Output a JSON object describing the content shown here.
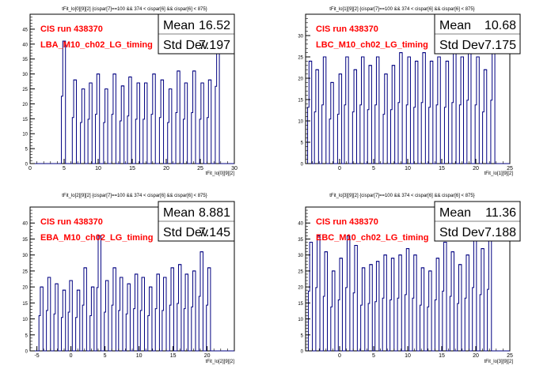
{
  "chart_data": [
    {
      "type": "bar",
      "title": "tFit_lo[0][9][2] {cispar[7]==100 && 374 < cispar[6] && cispar[6] < 875}",
      "xlabel": "tFit_lo[0][9][2]",
      "ylabel": "",
      "xlim": [
        0,
        30
      ],
      "ylim": [
        0,
        50
      ],
      "xticks": [
        "0",
        "5",
        "10",
        "15",
        "20",
        "25",
        "30"
      ],
      "yticks": [
        "0",
        "5",
        "10",
        "15",
        "20",
        "25",
        "30",
        "35",
        "40",
        "45"
      ],
      "annotations": [
        "CIS run 438370",
        "LBA_M10_ch02_LG_timing"
      ],
      "stats": {
        "mean_label": "Mean",
        "mean": "16.52",
        "std_label": "Std Dev",
        "std": "7.197"
      },
      "peaks": [
        {
          "x": 5.0,
          "y": 41
        },
        {
          "x": 6.6,
          "y": 28
        },
        {
          "x": 7.8,
          "y": 25
        },
        {
          "x": 8.9,
          "y": 27
        },
        {
          "x": 10.0,
          "y": 30
        },
        {
          "x": 11.2,
          "y": 25
        },
        {
          "x": 12.4,
          "y": 30
        },
        {
          "x": 13.6,
          "y": 26
        },
        {
          "x": 14.7,
          "y": 29
        },
        {
          "x": 15.9,
          "y": 27
        },
        {
          "x": 17.0,
          "y": 27
        },
        {
          "x": 18.2,
          "y": 30
        },
        {
          "x": 19.4,
          "y": 28
        },
        {
          "x": 20.6,
          "y": 25
        },
        {
          "x": 21.8,
          "y": 31
        },
        {
          "x": 22.9,
          "y": 27
        },
        {
          "x": 24.1,
          "y": 31
        },
        {
          "x": 25.3,
          "y": 27
        },
        {
          "x": 26.4,
          "y": 28
        },
        {
          "x": 27.6,
          "y": 47
        }
      ]
    },
    {
      "type": "bar",
      "title": "tFit_lo[1][9][2] {cispar[7]==100 && 374 < cispar[6] && cispar[6] < 875}",
      "xlabel": "tFit_lo[1][9][2]",
      "ylabel": "",
      "xlim": [
        -5,
        25
      ],
      "ylim": [
        0,
        35
      ],
      "xticks": [
        "0",
        "5",
        "10",
        "15",
        "20",
        "25"
      ],
      "yticks": [
        "0",
        "5",
        "10",
        "15",
        "20",
        "25",
        "30"
      ],
      "annotations": [
        "CIS run 438370",
        "LBC_M10_ch02_LG_timing"
      ],
      "stats": {
        "mean_label": "Mean",
        "mean": "10.68",
        "std_label": "Std Dev",
        "std": "7.175"
      },
      "peaks": [
        {
          "x": -4.3,
          "y": 24
        },
        {
          "x": -3.3,
          "y": 22
        },
        {
          "x": -2.2,
          "y": 25
        },
        {
          "x": -1.1,
          "y": 19
        },
        {
          "x": 0.1,
          "y": 21
        },
        {
          "x": 1.1,
          "y": 25
        },
        {
          "x": 2.3,
          "y": 22
        },
        {
          "x": 3.4,
          "y": 25
        },
        {
          "x": 4.5,
          "y": 23
        },
        {
          "x": 5.6,
          "y": 25
        },
        {
          "x": 6.8,
          "y": 21
        },
        {
          "x": 7.9,
          "y": 23
        },
        {
          "x": 9.0,
          "y": 26
        },
        {
          "x": 10.2,
          "y": 25
        },
        {
          "x": 11.3,
          "y": 24
        },
        {
          "x": 12.4,
          "y": 26
        },
        {
          "x": 13.5,
          "y": 24
        },
        {
          "x": 14.6,
          "y": 25
        },
        {
          "x": 15.8,
          "y": 24
        },
        {
          "x": 16.9,
          "y": 26
        },
        {
          "x": 18.0,
          "y": 25
        },
        {
          "x": 19.1,
          "y": 27
        },
        {
          "x": 20.3,
          "y": 25
        },
        {
          "x": 21.4,
          "y": 22
        },
        {
          "x": 22.6,
          "y": 27
        }
      ]
    },
    {
      "type": "bar",
      "title": "tFit_lo[2][9][2] {cispar[7]==100 && 374 < cispar[6] && cispar[6] < 875}",
      "xlabel": "tFit_lo[2][9][2]",
      "ylabel": "",
      "xlim": [
        -6,
        24
      ],
      "ylim": [
        0,
        45
      ],
      "xticks": [
        "-5",
        "0",
        "5",
        "10",
        "15",
        "20"
      ],
      "yticks": [
        "0",
        "5",
        "10",
        "15",
        "20",
        "25",
        "30",
        "35",
        "40"
      ],
      "annotations": [
        "CIS run 438370",
        "EBA_M10_ch02_LG_timing"
      ],
      "stats": {
        "mean_label": "Mean",
        "mean": "8.881",
        "std_label": "Std Dev",
        "std": "7.145"
      },
      "peaks": [
        {
          "x": -4.3,
          "y": 20
        },
        {
          "x": -3.2,
          "y": 23
        },
        {
          "x": -2.1,
          "y": 21
        },
        {
          "x": -1.0,
          "y": 19
        },
        {
          "x": 0.0,
          "y": 22
        },
        {
          "x": 1.1,
          "y": 19
        },
        {
          "x": 2.1,
          "y": 26
        },
        {
          "x": 3.2,
          "y": 20
        },
        {
          "x": 4.2,
          "y": 36
        },
        {
          "x": 5.3,
          "y": 22
        },
        {
          "x": 6.4,
          "y": 26
        },
        {
          "x": 7.4,
          "y": 23
        },
        {
          "x": 8.5,
          "y": 21
        },
        {
          "x": 9.6,
          "y": 24
        },
        {
          "x": 10.6,
          "y": 23
        },
        {
          "x": 11.7,
          "y": 20
        },
        {
          "x": 12.8,
          "y": 24
        },
        {
          "x": 13.8,
          "y": 23
        },
        {
          "x": 14.9,
          "y": 26
        },
        {
          "x": 16.0,
          "y": 27
        },
        {
          "x": 17.0,
          "y": 24
        },
        {
          "x": 18.1,
          "y": 25
        },
        {
          "x": 19.2,
          "y": 31
        },
        {
          "x": 20.3,
          "y": 26
        }
      ]
    },
    {
      "type": "bar",
      "title": "tFit_lo[3][9][2] {cispar[7]==100 && 374 < cispar[6] && cispar[6] < 875}",
      "xlabel": "tFit_lo[3][9][2]",
      "ylabel": "",
      "xlim": [
        -5,
        25
      ],
      "ylim": [
        0,
        45
      ],
      "xticks": [
        "0",
        "5",
        "10",
        "15",
        "20",
        "25"
      ],
      "yticks": [
        "0",
        "5",
        "10",
        "15",
        "20",
        "25",
        "30",
        "35",
        "40"
      ],
      "annotations": [
        "CIS run 438370",
        "EBC_M10_ch02_LG_timing"
      ],
      "stats": {
        "mean_label": "Mean",
        "mean": "11.36",
        "std_label": "Std Dev",
        "std": "7.188"
      },
      "peaks": [
        {
          "x": -4.2,
          "y": 34
        },
        {
          "x": -3.1,
          "y": 36
        },
        {
          "x": -2.0,
          "y": 31
        },
        {
          "x": -0.9,
          "y": 25
        },
        {
          "x": 0.2,
          "y": 29
        },
        {
          "x": 1.3,
          "y": 36
        },
        {
          "x": 2.4,
          "y": 33
        },
        {
          "x": 3.5,
          "y": 26
        },
        {
          "x": 4.6,
          "y": 27
        },
        {
          "x": 5.6,
          "y": 28
        },
        {
          "x": 6.7,
          "y": 30
        },
        {
          "x": 7.8,
          "y": 29
        },
        {
          "x": 8.9,
          "y": 30
        },
        {
          "x": 10.0,
          "y": 32
        },
        {
          "x": 11.1,
          "y": 30
        },
        {
          "x": 12.2,
          "y": 26
        },
        {
          "x": 13.3,
          "y": 25
        },
        {
          "x": 14.4,
          "y": 29
        },
        {
          "x": 15.5,
          "y": 34
        },
        {
          "x": 16.6,
          "y": 31
        },
        {
          "x": 17.7,
          "y": 27
        },
        {
          "x": 18.8,
          "y": 30
        },
        {
          "x": 19.9,
          "y": 36
        },
        {
          "x": 21.0,
          "y": 32
        },
        {
          "x": 22.1,
          "y": 35
        }
      ]
    }
  ],
  "colors": {
    "histogram": "#000080",
    "annotation": "#ff0000",
    "axis": "#000000"
  }
}
